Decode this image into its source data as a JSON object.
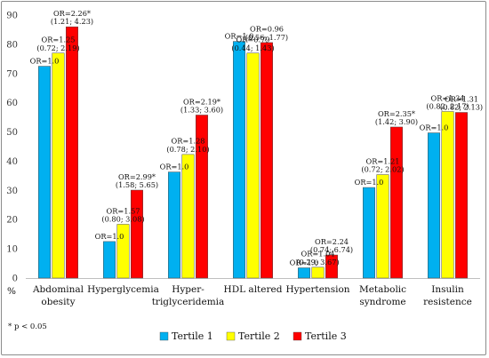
{
  "chart_data": {
    "type": "bar",
    "ylabel": "%",
    "ylim": [
      0,
      90
    ],
    "yticks": [
      0,
      10,
      20,
      30,
      40,
      50,
      60,
      70,
      80,
      90
    ],
    "grid": false,
    "legend_position": "bottom",
    "footnote": "* p < 0.05",
    "categories": [
      {
        "lines": [
          "Abdominal",
          "obesity"
        ]
      },
      {
        "lines": [
          "Hyperglycemia"
        ]
      },
      {
        "lines": [
          "Hyper-",
          "triglyceridemia"
        ]
      },
      {
        "lines": [
          "HDL altered"
        ]
      },
      {
        "lines": [
          "Hypertension"
        ]
      },
      {
        "lines": [
          "Metabolic",
          "syndrome"
        ]
      },
      {
        "lines": [
          "Insulin",
          "resistence"
        ]
      }
    ],
    "series": [
      {
        "name": "Tertile 1",
        "color": "#00B0F0",
        "values": [
          72.5,
          12.5,
          36.3,
          81.0,
          3.5,
          31.0,
          49.7
        ],
        "annotations": [
          [
            "OR=1.0"
          ],
          [
            "OR=1.0"
          ],
          [
            "OR=1.0"
          ],
          [
            "OR=1.0"
          ],
          [
            "OR=1.0"
          ],
          [
            "OR=1.0"
          ],
          [
            "OR=1.0"
          ]
        ]
      },
      {
        "name": "Tertile 2",
        "color": "#FFFF00",
        "values": [
          77.0,
          18.4,
          42.3,
          77.0,
          3.7,
          35.4,
          57.0
        ],
        "annotations": [
          [
            "OR=1.25",
            "(0.72; 2.19)"
          ],
          [
            "OR=1.57",
            "(0.80; 3.08)"
          ],
          [
            "OR=1.28",
            "(0.78; 2.10)"
          ],
          [
            "OR=0.79",
            "(0.44; 1.43)"
          ],
          [
            "OR=1.04",
            "(0.29; 3.67)"
          ],
          [
            "OR=1.21",
            "(0.72; 2.02)"
          ],
          [
            "OR=1.34",
            "(0.82; 2.17)"
          ]
        ]
      },
      {
        "name": "Tertile 3",
        "color": "#FF0000",
        "values": [
          86.0,
          30.1,
          55.8,
          80.6,
          7.9,
          51.7,
          56.7
        ],
        "annotations": [
          [
            "OR=2.26*",
            "(1.21; 4.23)"
          ],
          [
            "OR=2.99*",
            "(1.58; 5.65)"
          ],
          [
            "OR=2.19*",
            "(1.33; 3.60)"
          ],
          [
            "OR=0.96",
            "(0.56; 1.77)"
          ],
          [
            "OR=2.24",
            "(0.74; 6.74)"
          ],
          [
            "OR=2.35*",
            "(1.42; 3.90)"
          ],
          [
            "OR=1.31",
            "(0.82; 2.13)"
          ]
        ]
      }
    ]
  }
}
